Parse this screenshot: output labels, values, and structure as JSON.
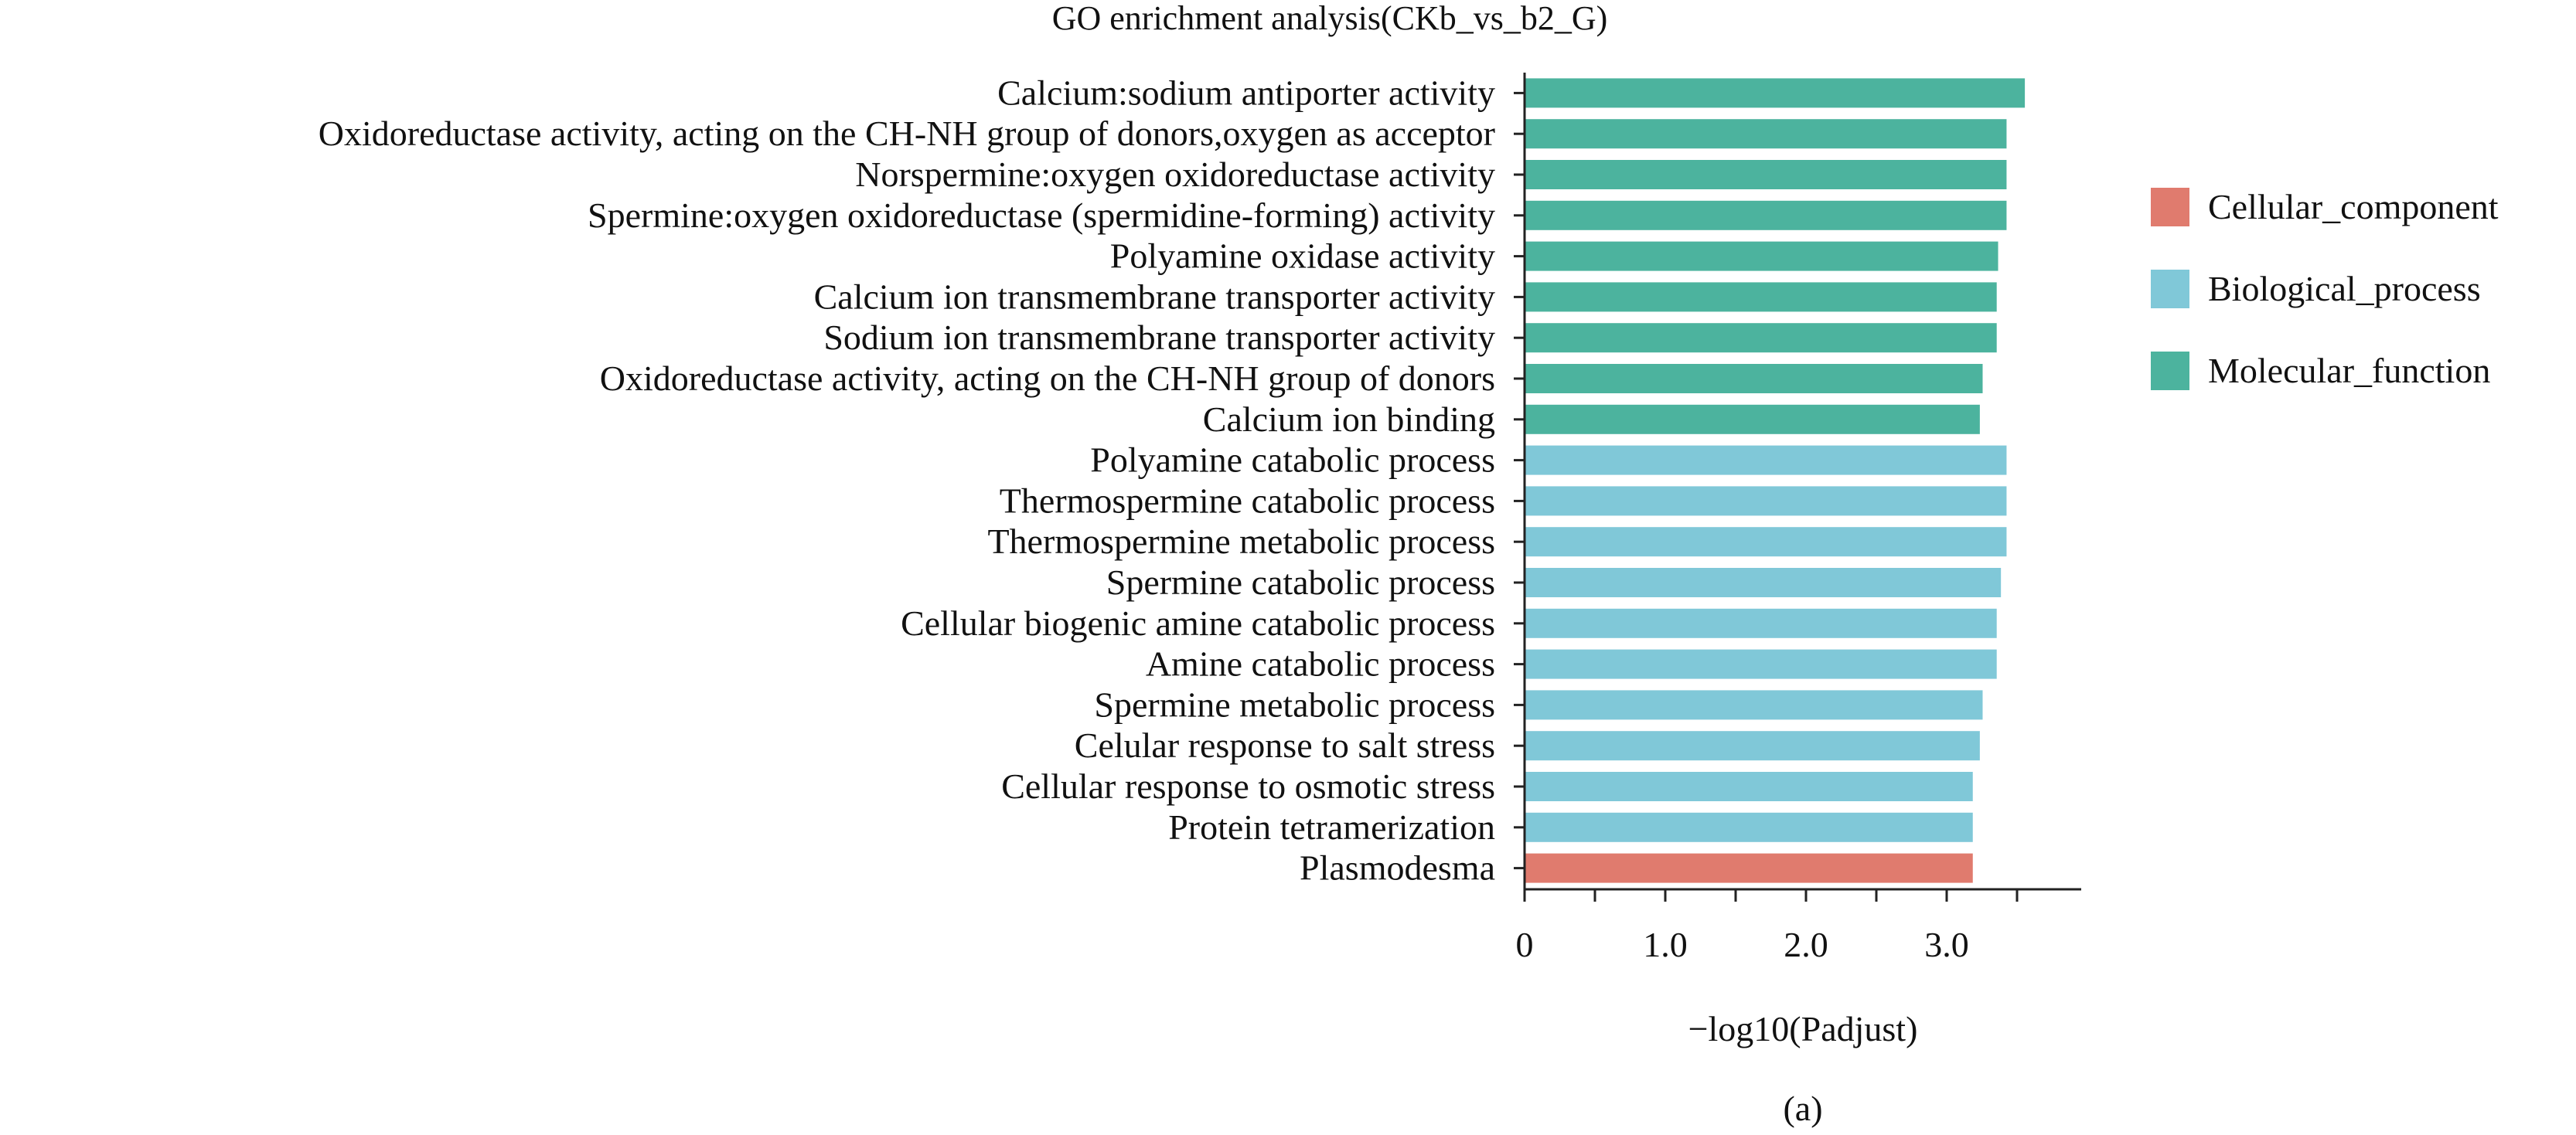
{
  "chart_data": {
    "type": "bar",
    "orientation": "horizontal",
    "title": "GO enrichment analysis(CKb_vs_b2_G)",
    "xlabel": "−log10(Padjust)",
    "caption": "(a)",
    "xticks": [
      {
        "value": 0,
        "label": "0"
      },
      {
        "value": 1.0,
        "label": "1.0"
      },
      {
        "value": 2.0,
        "label": "2.0"
      },
      {
        "value": 3.0,
        "label": "3.0"
      }
    ],
    "xlim": [
      0,
      3.9
    ],
    "legend_position": "right",
    "legend": [
      {
        "name": "Cellular_component",
        "color": "#e07b6e"
      },
      {
        "name": "Biological_process",
        "color": "#80c8d8"
      },
      {
        "name": "Molecular_function",
        "color": "#4cb39e"
      }
    ],
    "categories": [
      "Calcium:sodium antiporter activity",
      "Oxidoreductase activity, acting on the CH-NH group of donors,oxygen as acceptor",
      "Norspermine:oxygen oxidoreductase activity",
      "Spermine:oxygen oxidoreductase (spermidine-forming) activity",
      "Polyamine oxidase activity",
      "Calcium ion transmembrane transporter activity",
      "Sodium ion transmembrane transporter activity",
      "Oxidoreductase activity, acting on the CH-NH group of donors",
      "Calcium ion binding",
      "Polyamine catabolic process",
      "Thermospermine catabolic process",
      "Thermospermine metabolic process",
      "Spermine catabolic process",
      "Cellular biogenic amine catabolic process",
      "Amine catabolic process",
      "Spermine metabolic process",
      "Celular response to salt stress",
      "Cellular response to osmotic stress",
      "Protein tetramerization",
      "Plasmodesma"
    ],
    "values": [
      3.55,
      3.42,
      3.42,
      3.42,
      3.36,
      3.35,
      3.35,
      3.25,
      3.23,
      3.42,
      3.42,
      3.42,
      3.38,
      3.35,
      3.35,
      3.25,
      3.23,
      3.18,
      3.18,
      3.18
    ],
    "groups": [
      "Molecular_function",
      "Molecular_function",
      "Molecular_function",
      "Molecular_function",
      "Molecular_function",
      "Molecular_function",
      "Molecular_function",
      "Molecular_function",
      "Molecular_function",
      "Biological_process",
      "Biological_process",
      "Biological_process",
      "Biological_process",
      "Biological_process",
      "Biological_process",
      "Biological_process",
      "Biological_process",
      "Biological_process",
      "Biological_process",
      "Cellular_component"
    ]
  }
}
